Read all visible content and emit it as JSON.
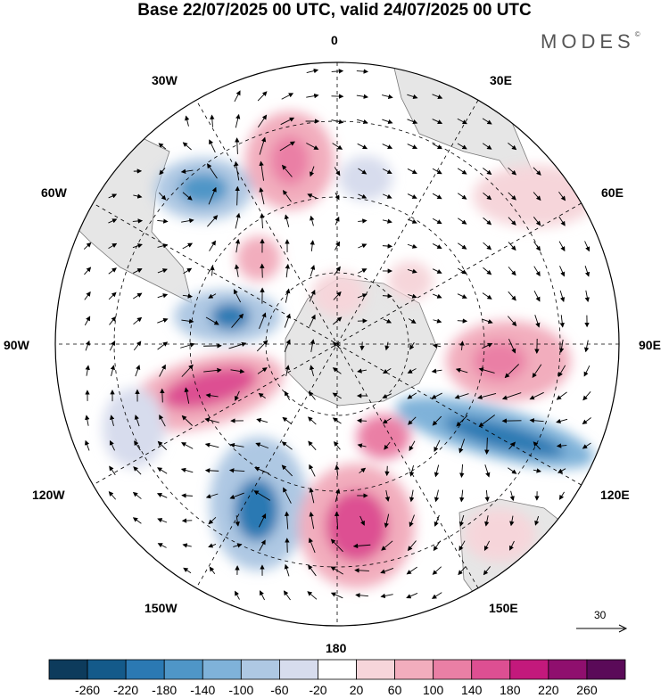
{
  "title": "Base 22/07/2025 00 UTC, valid 24/07/2025 00 UTC",
  "brand": "MODES",
  "brand_mark": "©",
  "longitude_labels": {
    "top": "0",
    "top_right": "30E",
    "upper_right": "60E",
    "right": "90E",
    "lower_right": "120E",
    "bottom_right": "150E",
    "bottom": "180",
    "bottom_left": "150W",
    "lower_left": "120W",
    "left": "90W",
    "upper_left": "60W",
    "top_left": "30W"
  },
  "vector_reference": {
    "value": "30"
  },
  "colorbar": {
    "ticks": [
      "-260",
      "-220",
      "-180",
      "-140",
      "-100",
      "-60",
      "-20",
      "20",
      "60",
      "100",
      "140",
      "180",
      "220",
      "260"
    ],
    "colors": [
      "#0d3b5c",
      "#145a8a",
      "#2b79b3",
      "#4f96c7",
      "#7fb2d9",
      "#aec8e3",
      "#d7dced",
      "#ffffff",
      "#f6d5da",
      "#f2adbd",
      "#ea7fa5",
      "#dd4f92",
      "#c3197c",
      "#8f0f6e",
      "#5a0a58"
    ]
  },
  "colors": {
    "land": "#e6e6e6",
    "graticule": "#000000"
  }
}
